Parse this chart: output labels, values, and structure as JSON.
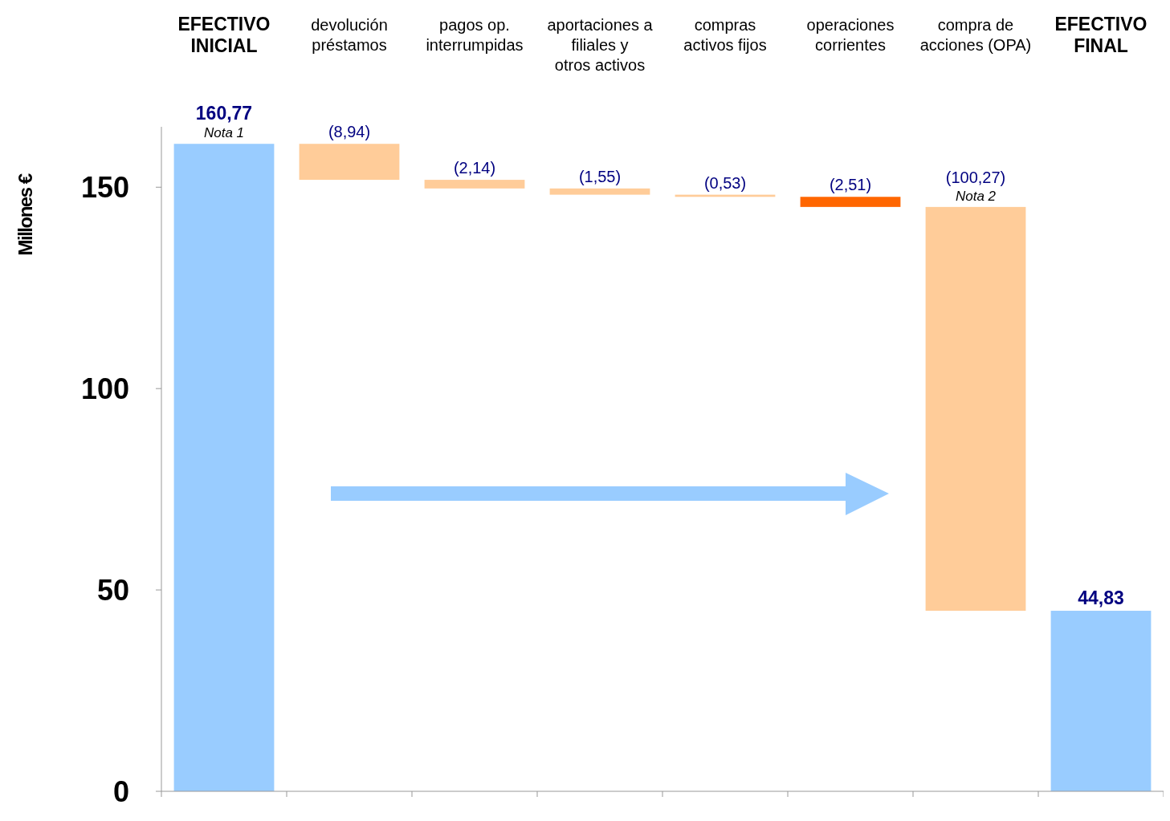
{
  "chart_data": {
    "type": "bar",
    "ylabel": "Millones €",
    "categories": [
      "EFECTIVO INICIAL",
      "devolución préstamos",
      "pagos op. interrumpidas",
      "aportaciones a filiales y otros activos",
      "compras activos fijos",
      "operaciones corrientes",
      "compra de acciones (OPA)",
      "EFECTIVO FINAL"
    ],
    "values": [
      160.77,
      8.94,
      2.14,
      1.55,
      0.53,
      2.51,
      100.27,
      44.83
    ],
    "base": [
      null,
      151.83,
      149.69,
      148.14,
      147.61,
      145.1,
      44.83,
      null
    ],
    "colors": [
      "#99ccff",
      "#ffcc99",
      "#ffcc99",
      "#ffcc99",
      "#ffcc99",
      "#ff6600",
      "#ffcc99",
      "#99ccff"
    ],
    "value_labels": [
      "160,77",
      "(8,94)",
      "(2,14)",
      "(1,55)",
      "(0,53)",
      "(2,51)",
      "(100,27)",
      "44,83"
    ],
    "ylim": [
      0,
      165
    ],
    "yticks": [
      0,
      50,
      100,
      150
    ],
    "grid": false,
    "annotations": [
      "Nota 1",
      "Nota 2"
    ]
  }
}
